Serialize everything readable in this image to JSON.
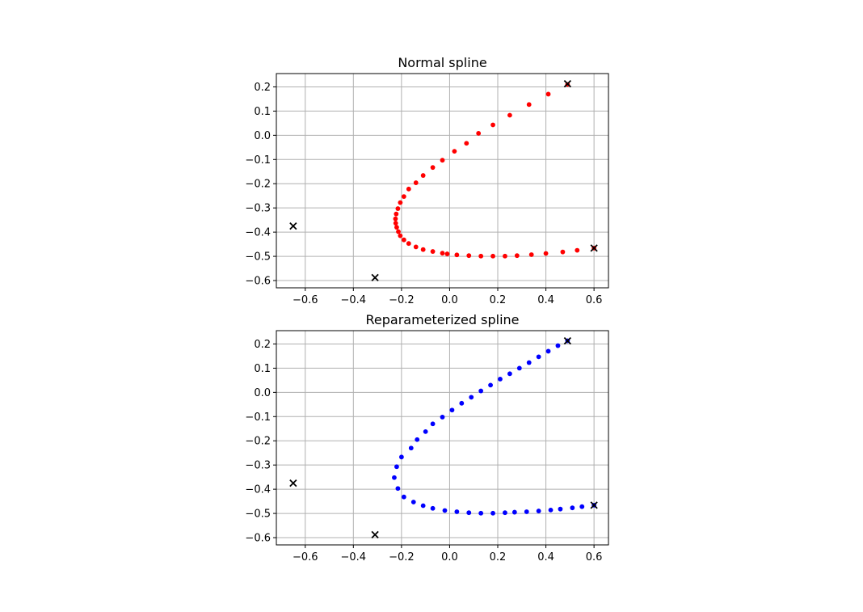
{
  "chart_data": [
    {
      "type": "scatter",
      "title": "Normal spline",
      "xlabel": "",
      "ylabel": "",
      "xlim": [
        -0.72,
        0.66
      ],
      "ylim": [
        -0.63,
        0.255
      ],
      "xticks": [
        -0.6,
        -0.4,
        -0.2,
        0.0,
        0.2,
        0.4,
        0.6
      ],
      "yticks": [
        0.2,
        0.1,
        0.0,
        -0.1,
        -0.2,
        -0.3,
        -0.4,
        -0.5,
        -0.6
      ],
      "xtick_labels": [
        "−0.6",
        "−0.4",
        "−0.2",
        "0.0",
        "0.2",
        "0.4",
        "0.6"
      ],
      "ytick_labels": [
        "0.2",
        "0.1",
        "0.0",
        "−0.1",
        "−0.2",
        "−0.3",
        "−0.4",
        "−0.5",
        "−0.6"
      ],
      "grid": true,
      "series": [
        {
          "marker": "dot",
          "color": "#ff0000",
          "points": [
            [
              0.49,
              0.21
            ],
            [
              0.41,
              0.17
            ],
            [
              0.33,
              0.127
            ],
            [
              0.25,
              0.083
            ],
            [
              0.18,
              0.043
            ],
            [
              0.12,
              0.008
            ],
            [
              0.07,
              -0.033
            ],
            [
              0.02,
              -0.066
            ],
            [
              -0.03,
              -0.103
            ],
            [
              -0.07,
              -0.133
            ],
            [
              -0.11,
              -0.166
            ],
            [
              -0.14,
              -0.196
            ],
            [
              -0.17,
              -0.222
            ],
            [
              -0.19,
              -0.253
            ],
            [
              -0.205,
              -0.278
            ],
            [
              -0.215,
              -0.303
            ],
            [
              -0.222,
              -0.325
            ],
            [
              -0.225,
              -0.345
            ],
            [
              -0.224,
              -0.363
            ],
            [
              -0.22,
              -0.38
            ],
            [
              -0.213,
              -0.398
            ],
            [
              -0.205,
              -0.415
            ],
            [
              -0.19,
              -0.432
            ],
            [
              -0.17,
              -0.447
            ],
            [
              -0.14,
              -0.461
            ],
            [
              -0.11,
              -0.472
            ],
            [
              -0.07,
              -0.48
            ],
            [
              -0.03,
              -0.487
            ],
            [
              -0.01,
              -0.49
            ],
            [
              0.03,
              -0.494
            ],
            [
              0.08,
              -0.497
            ],
            [
              0.13,
              -0.499
            ],
            [
              0.18,
              -0.499
            ],
            [
              0.23,
              -0.499
            ],
            [
              0.28,
              -0.497
            ],
            [
              0.34,
              -0.493
            ],
            [
              0.4,
              -0.488
            ],
            [
              0.47,
              -0.482
            ],
            [
              0.53,
              -0.475
            ],
            [
              0.6,
              -0.466
            ]
          ]
        },
        {
          "marker": "x",
          "color": "#000000",
          "points": [
            [
              -0.65,
              -0.375
            ],
            [
              -0.31,
              -0.588
            ],
            [
              0.6,
              -0.466
            ],
            [
              0.49,
              0.213
            ]
          ]
        }
      ]
    },
    {
      "type": "scatter",
      "title": "Reparameterized spline",
      "xlabel": "",
      "ylabel": "",
      "xlim": [
        -0.72,
        0.66
      ],
      "ylim": [
        -0.63,
        0.255
      ],
      "xticks": [
        -0.6,
        -0.4,
        -0.2,
        0.0,
        0.2,
        0.4,
        0.6
      ],
      "yticks": [
        0.2,
        0.1,
        0.0,
        -0.1,
        -0.2,
        -0.3,
        -0.4,
        -0.5,
        -0.6
      ],
      "xtick_labels": [
        "−0.6",
        "−0.4",
        "−0.2",
        "0.0",
        "0.2",
        "0.4",
        "0.6"
      ],
      "ytick_labels": [
        "0.2",
        "0.1",
        "0.0",
        "−0.1",
        "−0.2",
        "−0.3",
        "−0.4",
        "−0.5",
        "−0.6"
      ],
      "grid": true,
      "series": [
        {
          "marker": "dot",
          "color": "#0000ff",
          "points": [
            [
              0.49,
              0.213
            ],
            [
              0.45,
              0.193
            ],
            [
              0.41,
              0.17
            ],
            [
              0.37,
              0.147
            ],
            [
              0.33,
              0.123
            ],
            [
              0.29,
              0.1
            ],
            [
              0.25,
              0.077
            ],
            [
              0.21,
              0.055
            ],
            [
              0.17,
              0.03
            ],
            [
              0.13,
              0.006
            ],
            [
              0.09,
              -0.02
            ],
            [
              0.05,
              -0.045
            ],
            [
              0.01,
              -0.073
            ],
            [
              -0.03,
              -0.102
            ],
            [
              -0.07,
              -0.13
            ],
            [
              -0.1,
              -0.162
            ],
            [
              -0.135,
              -0.195
            ],
            [
              -0.16,
              -0.23
            ],
            [
              -0.2,
              -0.267
            ],
            [
              -0.22,
              -0.307
            ],
            [
              -0.23,
              -0.352
            ],
            [
              -0.215,
              -0.397
            ],
            [
              -0.19,
              -0.432
            ],
            [
              -0.15,
              -0.453
            ],
            [
              -0.11,
              -0.468
            ],
            [
              -0.07,
              -0.479
            ],
            [
              -0.02,
              -0.488
            ],
            [
              0.03,
              -0.493
            ],
            [
              0.08,
              -0.497
            ],
            [
              0.13,
              -0.499
            ],
            [
              0.18,
              -0.499
            ],
            [
              0.23,
              -0.497
            ],
            [
              0.27,
              -0.495
            ],
            [
              0.32,
              -0.493
            ],
            [
              0.37,
              -0.49
            ],
            [
              0.42,
              -0.486
            ],
            [
              0.46,
              -0.482
            ],
            [
              0.51,
              -0.477
            ],
            [
              0.55,
              -0.472
            ],
            [
              0.6,
              -0.466
            ]
          ]
        },
        {
          "marker": "x",
          "color": "#000000",
          "points": [
            [
              -0.65,
              -0.375
            ],
            [
              -0.31,
              -0.588
            ],
            [
              0.6,
              -0.466
            ],
            [
              0.49,
              0.213
            ]
          ]
        }
      ]
    }
  ]
}
